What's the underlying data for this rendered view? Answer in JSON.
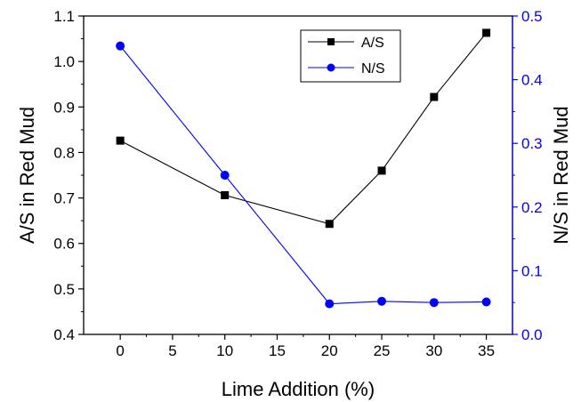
{
  "chart_data": {
    "type": "line",
    "xlabel": "Lime Addition (%)",
    "ylabel_left": "A/S in Red Mud",
    "ylabel_right": "N/S in Red Mud",
    "xlim": [
      -3.5,
      37.5
    ],
    "ylim_left": [
      0.4,
      1.1
    ],
    "ylim_right": [
      0.0,
      0.5
    ],
    "x_ticks": [
      "0",
      "5",
      "10",
      "15",
      "20",
      "25",
      "30",
      "35"
    ],
    "y_left_ticks": [
      "0.4",
      "0.5",
      "0.6",
      "0.7",
      "0.8",
      "0.9",
      "1.0",
      "1.1"
    ],
    "y_right_ticks": [
      "0.0",
      "0.1",
      "0.2",
      "0.3",
      "0.4",
      "0.5"
    ],
    "legend_position": "top-right",
    "series": [
      {
        "name": "A/S",
        "axis": "left",
        "color": "#000000",
        "marker": "square",
        "x": [
          0,
          10,
          20,
          25,
          30,
          35
        ],
        "y": [
          0.826,
          0.706,
          0.643,
          0.76,
          0.922,
          1.063
        ]
      },
      {
        "name": "N/S",
        "axis": "right",
        "color": "#0000ff",
        "marker": "circle",
        "x": [
          0,
          10,
          20,
          25,
          30,
          35
        ],
        "y": [
          0.453,
          0.25,
          0.048,
          0.052,
          0.05,
          0.051
        ]
      }
    ]
  }
}
